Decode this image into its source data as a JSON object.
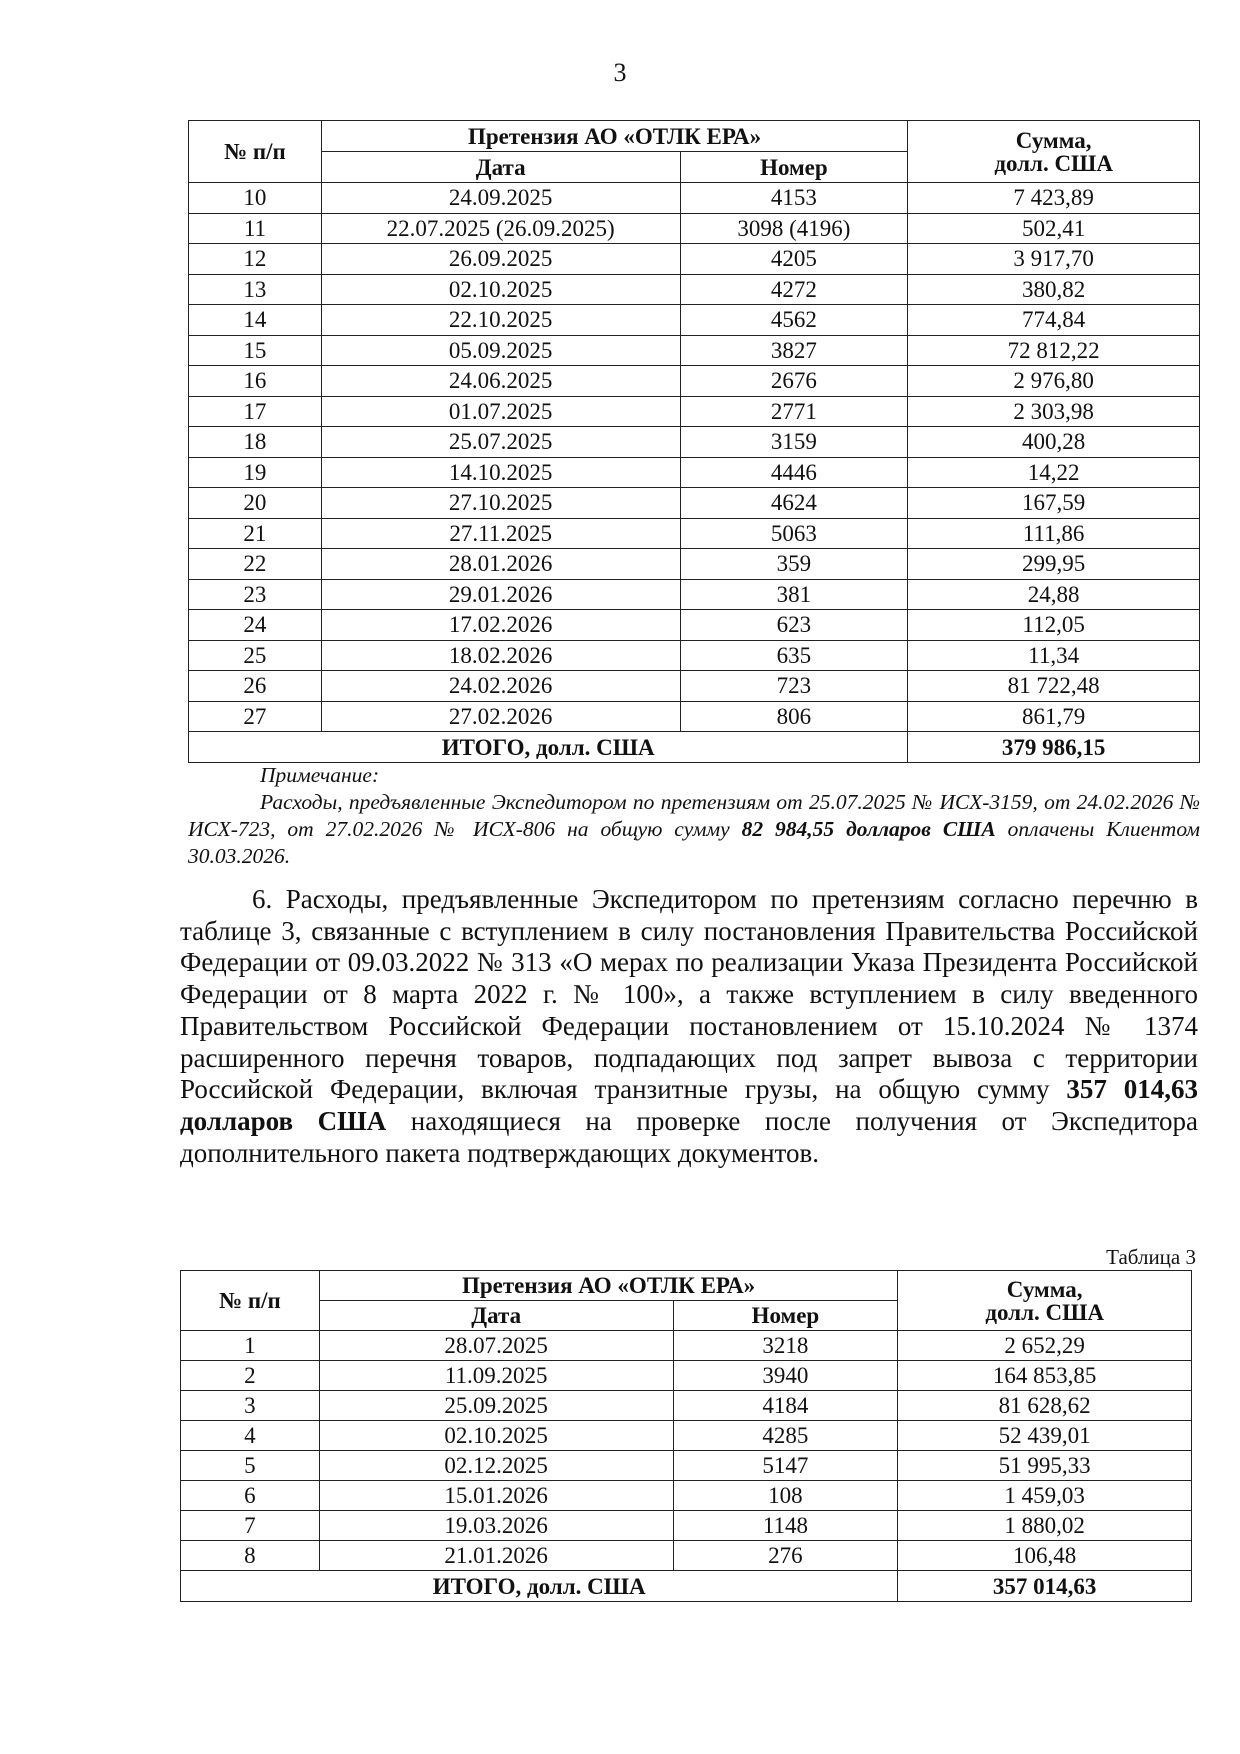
{
  "page_number": "3",
  "table_headers": {
    "num": "№ п/п",
    "claim": "Претензия АО «ОТЛК ЕРА»",
    "date": "Дата",
    "number": "Номер",
    "sum": "Сумма,",
    "sum_unit": "долл. США",
    "total_label": "ИТОГО, долл. США"
  },
  "table1": {
    "rows": [
      [
        "10",
        "24.09.2025",
        "4153",
        "7 423,89"
      ],
      [
        "11",
        "22.07.2025 (26.09.2025)",
        "3098 (4196)",
        "502,41"
      ],
      [
        "12",
        "26.09.2025",
        "4205",
        "3 917,70"
      ],
      [
        "13",
        "02.10.2025",
        "4272",
        "380,82"
      ],
      [
        "14",
        "22.10.2025",
        "4562",
        "774,84"
      ],
      [
        "15",
        "05.09.2025",
        "3827",
        "72 812,22"
      ],
      [
        "16",
        "24.06.2025",
        "2676",
        "2 976,80"
      ],
      [
        "17",
        "01.07.2025",
        "2771",
        "2 303,98"
      ],
      [
        "18",
        "25.07.2025",
        "3159",
        "400,28"
      ],
      [
        "19",
        "14.10.2025",
        "4446",
        "14,22"
      ],
      [
        "20",
        "27.10.2025",
        "4624",
        "167,59"
      ],
      [
        "21",
        "27.11.2025",
        "5063",
        "111,86"
      ],
      [
        "22",
        "28.01.2026",
        "359",
        "299,95"
      ],
      [
        "23",
        "29.01.2026",
        "381",
        "24,88"
      ],
      [
        "24",
        "17.02.2026",
        "623",
        "112,05"
      ],
      [
        "25",
        "18.02.2026",
        "635",
        "11,34"
      ],
      [
        "26",
        "24.02.2026",
        "723",
        "81 722,48"
      ],
      [
        "27",
        "27.02.2026",
        "806",
        "861,79"
      ]
    ],
    "total": "379 986,15"
  },
  "note": {
    "heading": "Примечание:",
    "text_before": "Расходы, предъявленные Экспедитором по претензиям от 25.07.2025 № ИСХ-3159, от 24.02.2026 № ИСХ-723, от 27.02.2026 № ИСХ-806 на общую сумму ",
    "amount": "82 984,55 долларов США",
    "text_after": " оплачены Клиентом 30.03.2026."
  },
  "paragraph6": {
    "text_before": "6. Расходы, предъявленные Экспедитором по претензиям согласно перечню в таблице 3, связанные с вступлением в силу постановления Правительства Российской Федерации от 09.03.2022 № 313 «О мерах по реализации Указа Президента Российской Федерации от 8 марта 2022 г. № 100», а также вступлением в силу введенного Правительством Российской Федерации постановлением от 15.10.2024 № 1374 расширенного перечня товаров, подпадающих под запрет вывоза с территории Российской Федерации, включая транзитные грузы, на общую сумму ",
    "amount": "357 014,63 долларов США",
    "text_after": " находящиеся на проверке после получения от Экспедитора дополнительного пакета подтверждающих документов."
  },
  "table2": {
    "caption": "Таблица 3",
    "rows": [
      [
        "1",
        "28.07.2025",
        "3218",
        "2 652,29"
      ],
      [
        "2",
        "11.09.2025",
        "3940",
        "164 853,85"
      ],
      [
        "3",
        "25.09.2025",
        "4184",
        "81 628,62"
      ],
      [
        "4",
        "02.10.2025",
        "4285",
        "52 439,01"
      ],
      [
        "5",
        "02.12.2025",
        "5147",
        "51 995,33"
      ],
      [
        "6",
        "15.01.2026",
        "108",
        "1 459,03"
      ],
      [
        "7",
        "19.03.2026",
        "1148",
        "1 880,02"
      ],
      [
        "8",
        "21.01.2026",
        "276",
        "106,48"
      ]
    ],
    "total": "357 014,63"
  }
}
